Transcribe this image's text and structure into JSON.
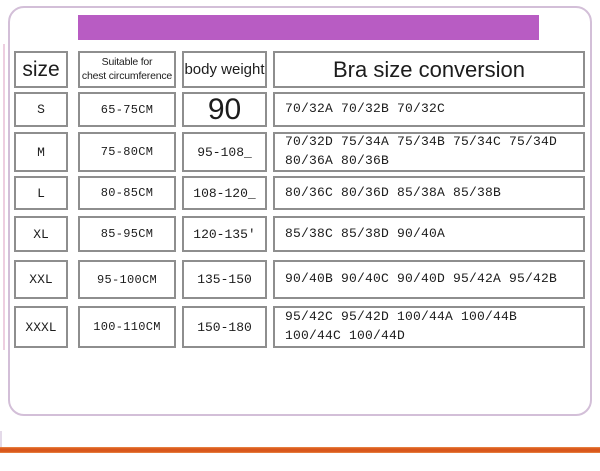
{
  "colors": {
    "banner": "#b85cc3",
    "divider": "#d9571b",
    "cell_border": "#8e8e8e",
    "frame_border": "#d3bfd8",
    "text": "#1c1c1c",
    "edge_line": "#dfa6c6"
  },
  "table": {
    "header": {
      "size": "size",
      "chest": "Suitable for\nchest circumference",
      "weight": "body weight",
      "bra": "Bra size conversion"
    },
    "rows": [
      {
        "size": "S",
        "chest": "65-75CM",
        "weight": "90",
        "bra": "70/32A 70/32B 70/32C"
      },
      {
        "size": "M",
        "chest": "75-80CM",
        "weight": "95-108_",
        "bra": "70/32D 75/34A 75/34B 75/34C 75/34D\n80/36A 80/36B"
      },
      {
        "size": "L",
        "chest": "80-85CM",
        "weight": "108-120_",
        "bra": "80/36C 80/36D 85/38A 85/38B"
      },
      {
        "size": "XL",
        "chest": "85-95CM",
        "weight": "120-135'",
        "bra": "85/38C 85/38D 90/40A"
      },
      {
        "size": "XXL",
        "chest": "95-100CM",
        "weight": "135-150",
        "bra": "90/40B 90/40C 90/40D 95/42A 95/42B"
      },
      {
        "size": "XXXL",
        "chest": "100-110CM",
        "weight": "150-180",
        "bra": "95/42C 95/42D 100/44A 100/44B\n100/44C 100/44D"
      }
    ]
  }
}
